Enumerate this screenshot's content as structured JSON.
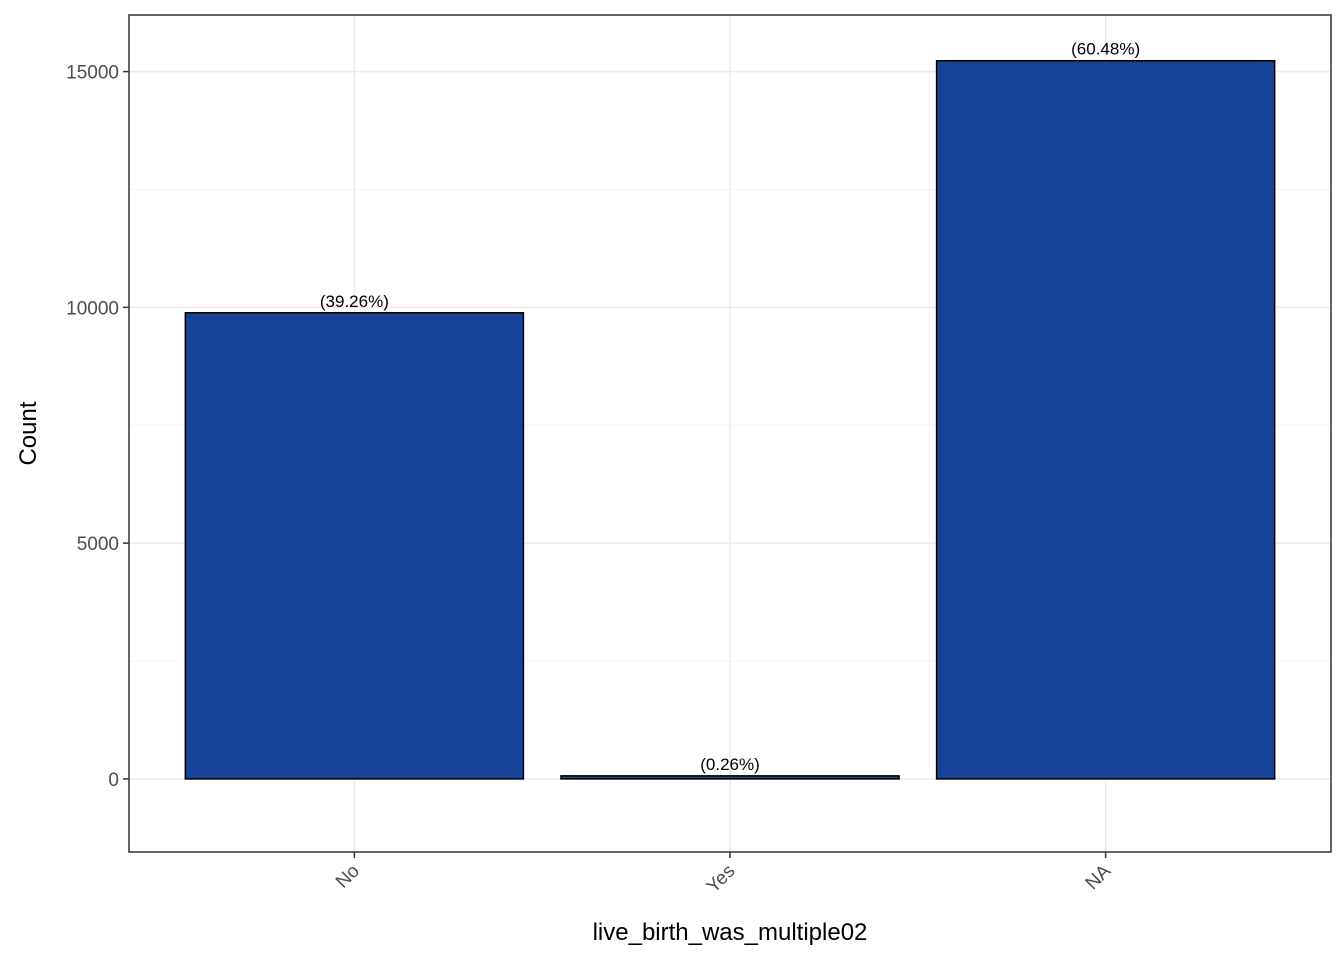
{
  "chart_data": {
    "type": "bar",
    "categories": [
      "No",
      "Yes",
      "NA"
    ],
    "values": [
      9885,
      65,
      15230
    ],
    "data_labels": [
      "(39.26%)",
      "(0.26%)",
      "(60.48%)"
    ],
    "xlabel": "live_birth_was_multiple02",
    "ylabel": "Count",
    "ylim": [
      -1550,
      16200
    ],
    "yticks": [
      0,
      5000,
      10000,
      15000
    ],
    "ytick_labels": [
      "0",
      "5000",
      "10000",
      "15000"
    ],
    "xtick_rotation_deg": 45,
    "grid": true,
    "legend": "none",
    "colors": {
      "bar_fill": "#174499",
      "bar_stroke": "#000000",
      "panel_border": "#333333",
      "grid_major": "#ebebeb",
      "grid_minor": "#f4f4f4",
      "tick_text": "#4d4d4d"
    }
  }
}
